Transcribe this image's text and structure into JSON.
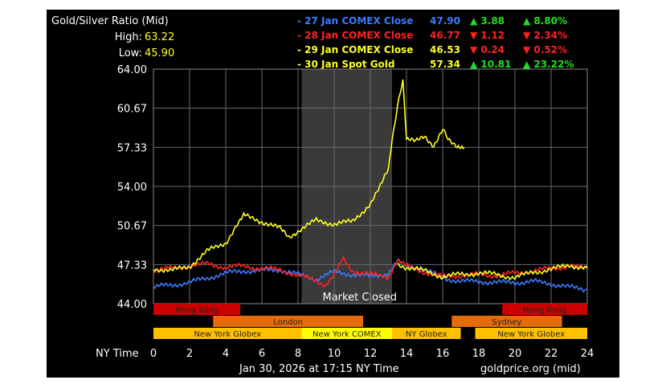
{
  "chart_data": {
    "type": "line",
    "title": "Gold/Silver Ratio (Mid)",
    "high_label": "High:",
    "high_value": "63.22",
    "low_label": "Low:",
    "low_value": "45.90",
    "xlabel": "NY Time",
    "x_ticks": [
      "0",
      "2",
      "4",
      "6",
      "8",
      "10",
      "12",
      "14",
      "16",
      "18",
      "20",
      "22",
      "24"
    ],
    "xlim": [
      0,
      24
    ],
    "y_ticks": [
      "44.00",
      "47.33",
      "50.67",
      "54.00",
      "57.33",
      "60.67",
      "64.00"
    ],
    "ylim": [
      44.0,
      64.0
    ],
    "grid": true,
    "shaded_region": {
      "label": "Market Closed",
      "x_start": 8.2,
      "x_end": 13.2
    },
    "legend": [
      {
        "label": "- 27 Jan COMEX Close",
        "value": "47.90",
        "arrow": "▲",
        "change": "3.88",
        "pct": "8.80%",
        "color": "#3a7bff",
        "change_color": "#22dd22"
      },
      {
        "label": "- 28 Jan COMEX Close",
        "value": "46.77",
        "arrow": "▼",
        "change": "1.12",
        "pct": "2.34%",
        "color": "#ff2222",
        "change_color": "#ff2222"
      },
      {
        "label": "- 29 Jan COMEX Close",
        "value": "46.53",
        "arrow": "▼",
        "change": "0.24",
        "pct": "0.52%",
        "color": "#ffff22",
        "change_color": "#ff2222"
      },
      {
        "label": "- 30 Jan Spot Gold",
        "value": "57.34",
        "arrow": "▲",
        "change": "10.81",
        "pct": "23.22%",
        "color": "#ffff22",
        "change_color": "#22dd22"
      }
    ],
    "series": [
      {
        "color": "#3a7bff",
        "x": [
          0,
          1,
          2,
          3,
          4,
          5,
          6,
          7,
          8,
          9,
          10,
          11,
          12,
          13,
          13.5,
          14,
          15,
          16,
          17,
          18,
          19,
          20,
          21,
          22,
          23,
          24
        ],
        "y": [
          45.4,
          45.6,
          45.8,
          46.2,
          46.6,
          46.8,
          46.8,
          46.9,
          46.5,
          46.1,
          46.7,
          46.5,
          46.3,
          46.6,
          47.6,
          47.2,
          46.9,
          46.2,
          45.9,
          45.9,
          45.8,
          45.8,
          45.9,
          45.7,
          45.4,
          45.2
        ]
      },
      {
        "color": "#ff2222",
        "x": [
          0,
          1,
          2,
          3,
          4,
          5,
          6,
          7,
          8,
          9,
          9.5,
          10,
          10.5,
          11,
          12,
          13,
          13.5,
          14,
          15,
          16,
          17,
          18,
          19,
          20,
          21,
          22,
          23,
          24
        ],
        "y": [
          46.9,
          47.0,
          47.2,
          47.4,
          47.1,
          47.2,
          47.0,
          46.9,
          46.4,
          46.0,
          45.6,
          46.4,
          47.8,
          46.8,
          46.5,
          46.3,
          47.7,
          47.2,
          46.7,
          46.3,
          46.4,
          46.5,
          46.4,
          46.6,
          46.8,
          47.0,
          47.2,
          47.0
        ]
      },
      {
        "color": "#ffff22",
        "x": [
          0,
          1,
          2,
          3,
          4,
          4.8,
          5,
          5.5,
          6,
          7,
          7.5,
          8,
          9,
          10,
          11,
          12,
          12.5,
          13,
          13.2,
          13.5,
          13.8,
          14,
          14.5,
          15,
          15.5,
          16,
          16.3,
          16.8,
          17.2
        ],
        "y": [
          47.0,
          46.8,
          47.2,
          48.5,
          49.2,
          51.0,
          51.5,
          51.3,
          51.0,
          50.4,
          49.7,
          50.2,
          51.1,
          50.8,
          51.0,
          52.5,
          53.8,
          55.5,
          57.8,
          61.0,
          63.0,
          58.0,
          57.8,
          58.3,
          57.5,
          58.8,
          58.0,
          57.5,
          57.3
        ]
      },
      {
        "color": "#ffff22",
        "x": [
          13.5,
          14,
          15,
          16,
          17,
          18,
          19,
          20,
          21,
          22,
          23,
          24
        ],
        "y": [
          47.4,
          47.1,
          46.8,
          46.3,
          46.5,
          46.6,
          46.5,
          46.2,
          46.7,
          46.9,
          47.3,
          47.0
        ]
      }
    ],
    "sessions": [
      [
        {
          "label": "Hong Kong",
          "start": 0,
          "end": 4.8,
          "color": "#cc0000"
        },
        {
          "label": "Hong Kong",
          "start": 19.3,
          "end": 24,
          "color": "#cc0000"
        }
      ],
      [
        {
          "label": "London",
          "start": 3.3,
          "end": 11.6,
          "color": "#e46c0a"
        },
        {
          "label": "Sydney",
          "start": 16.5,
          "end": 22.6,
          "color": "#e46c0a"
        }
      ],
      [
        {
          "label": "New York Globex",
          "start": 0,
          "end": 8.2,
          "color": "#ffc000"
        },
        {
          "label": "New York COMEX",
          "start": 8.2,
          "end": 13.2,
          "color": "#ffff00"
        },
        {
          "label": "NY Globex",
          "start": 13.2,
          "end": 17.0,
          "color": "#ffc000"
        },
        {
          "label": "New York Globex",
          "start": 17.8,
          "end": 24,
          "color": "#ffc000"
        }
      ]
    ],
    "footer_time": "Jan 30, 2026 at 17:15 NY Time",
    "footer_source": "goldprice.org (mid)"
  }
}
